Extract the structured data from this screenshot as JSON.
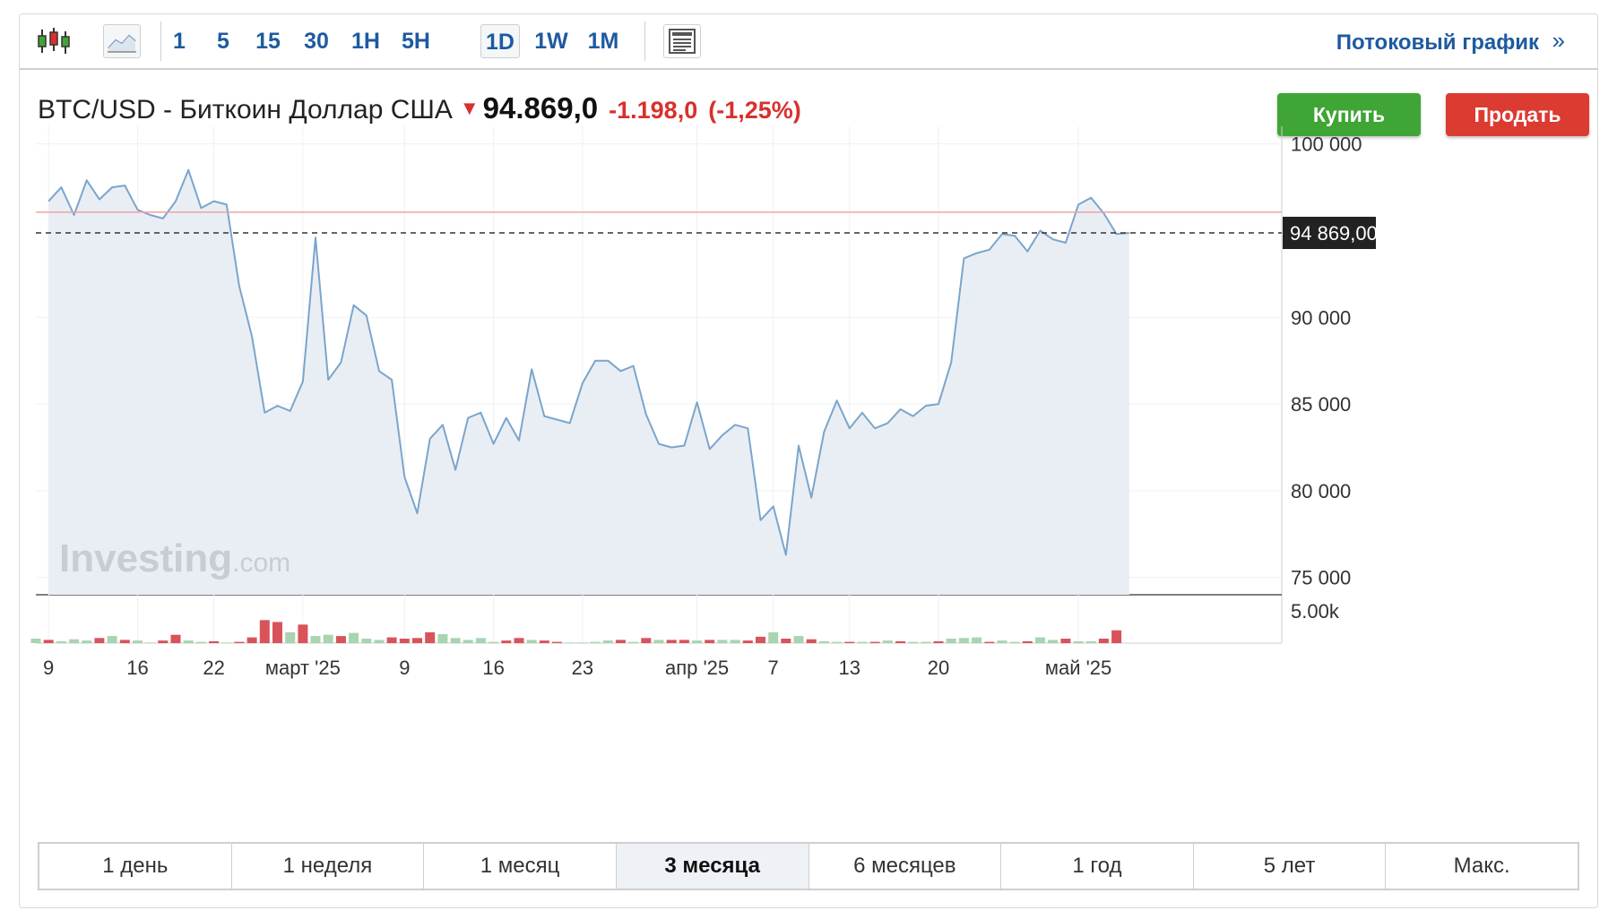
{
  "toolbar": {
    "icons": [
      "candlestick-icon",
      "line-chart-icon",
      "news-panel-icon"
    ],
    "timeframes": [
      "1",
      "5",
      "15",
      "30",
      "1H",
      "5H",
      "1D",
      "1W",
      "1M"
    ],
    "active_timeframe": "1D",
    "stream_link": "Потоковый график",
    "stream_chevron": "»"
  },
  "quote": {
    "title": "BTC/USD - Биткоин Доллар США",
    "direction": "down",
    "price": "94.869,0",
    "change": "-1.198,0",
    "change_pct": "(-1,25%)"
  },
  "buttons": {
    "buy": "Купить",
    "sell": "Продать"
  },
  "ranges": [
    "1 день",
    "1 неделя",
    "1 месяц",
    "3 месяца",
    "6 месяцев",
    "1 год",
    "5 лет",
    "Макс."
  ],
  "active_range": "3 месяца",
  "watermark": {
    "brand": "Investing",
    "suffix": ".com"
  },
  "chart_data": {
    "type": "area",
    "title": "",
    "xlabel": "",
    "ylabel": "",
    "ylim": [
      74000,
      100500
    ],
    "y_ticks": [
      100000,
      90000,
      85000,
      80000,
      75000
    ],
    "y_tick_labels": [
      "100 000",
      "90 000",
      "85 000",
      "80 000",
      "75 000"
    ],
    "x_tick_labels": [
      {
        "date": "2025-02-09",
        "label": "9"
      },
      {
        "date": "2025-02-16",
        "label": "16"
      },
      {
        "date": "2025-02-22",
        "label": "22"
      },
      {
        "date": "2025-03-01",
        "label": "март '25"
      },
      {
        "date": "2025-03-09",
        "label": "9"
      },
      {
        "date": "2025-03-16",
        "label": "16"
      },
      {
        "date": "2025-03-23",
        "label": "23"
      },
      {
        "date": "2025-04-01",
        "label": "апр '25"
      },
      {
        "date": "2025-04-07",
        "label": "7"
      },
      {
        "date": "2025-04-13",
        "label": "13"
      },
      {
        "date": "2025-04-20",
        "label": "20"
      },
      {
        "date": "2025-05-01",
        "label": "май '25"
      }
    ],
    "current_price": 94869,
    "current_price_label": "94 869,00",
    "previous_close": 96067,
    "series": [
      {
        "values": [
          {
            "x": "2025-02-09",
            "y": 96700
          },
          {
            "x": "2025-02-10",
            "y": 97500
          },
          {
            "x": "2025-02-11",
            "y": 95900
          },
          {
            "x": "2025-02-12",
            "y": 97900
          },
          {
            "x": "2025-02-13",
            "y": 96800
          },
          {
            "x": "2025-02-14",
            "y": 97500
          },
          {
            "x": "2025-02-15",
            "y": 97600
          },
          {
            "x": "2025-02-16",
            "y": 96200
          },
          {
            "x": "2025-02-17",
            "y": 95900
          },
          {
            "x": "2025-02-18",
            "y": 95700
          },
          {
            "x": "2025-02-19",
            "y": 96700
          },
          {
            "x": "2025-02-20",
            "y": 98500
          },
          {
            "x": "2025-02-21",
            "y": 96300
          },
          {
            "x": "2025-02-22",
            "y": 96700
          },
          {
            "x": "2025-02-23",
            "y": 96500
          },
          {
            "x": "2025-02-24",
            "y": 91800
          },
          {
            "x": "2025-02-25",
            "y": 88900
          },
          {
            "x": "2025-02-26",
            "y": 84500
          },
          {
            "x": "2025-02-27",
            "y": 84900
          },
          {
            "x": "2025-02-28",
            "y": 84600
          },
          {
            "x": "2025-03-01",
            "y": 86300
          },
          {
            "x": "2025-03-02",
            "y": 94600
          },
          {
            "x": "2025-03-03",
            "y": 86400
          },
          {
            "x": "2025-03-04",
            "y": 87400
          },
          {
            "x": "2025-03-05",
            "y": 90700
          },
          {
            "x": "2025-03-06",
            "y": 90100
          },
          {
            "x": "2025-03-07",
            "y": 86900
          },
          {
            "x": "2025-03-08",
            "y": 86400
          },
          {
            "x": "2025-03-09",
            "y": 80800
          },
          {
            "x": "2025-03-10",
            "y": 78700
          },
          {
            "x": "2025-03-11",
            "y": 83000
          },
          {
            "x": "2025-03-12",
            "y": 83800
          },
          {
            "x": "2025-03-13",
            "y": 81200
          },
          {
            "x": "2025-03-14",
            "y": 84200
          },
          {
            "x": "2025-03-15",
            "y": 84500
          },
          {
            "x": "2025-03-16",
            "y": 82700
          },
          {
            "x": "2025-03-17",
            "y": 84200
          },
          {
            "x": "2025-03-18",
            "y": 82900
          },
          {
            "x": "2025-03-19",
            "y": 87000
          },
          {
            "x": "2025-03-20",
            "y": 84300
          },
          {
            "x": "2025-03-21",
            "y": 84100
          },
          {
            "x": "2025-03-22",
            "y": 83900
          },
          {
            "x": "2025-03-23",
            "y": 86200
          },
          {
            "x": "2025-03-24",
            "y": 87500
          },
          {
            "x": "2025-03-25",
            "y": 87500
          },
          {
            "x": "2025-03-26",
            "y": 86900
          },
          {
            "x": "2025-03-27",
            "y": 87200
          },
          {
            "x": "2025-03-28",
            "y": 84400
          },
          {
            "x": "2025-03-29",
            "y": 82700
          },
          {
            "x": "2025-03-30",
            "y": 82500
          },
          {
            "x": "2025-03-31",
            "y": 82600
          },
          {
            "x": "2025-04-01",
            "y": 85100
          },
          {
            "x": "2025-04-02",
            "y": 82400
          },
          {
            "x": "2025-04-03",
            "y": 83200
          },
          {
            "x": "2025-04-04",
            "y": 83800
          },
          {
            "x": "2025-04-05",
            "y": 83600
          },
          {
            "x": "2025-04-06",
            "y": 78300
          },
          {
            "x": "2025-04-07",
            "y": 79100
          },
          {
            "x": "2025-04-08",
            "y": 76300
          },
          {
            "x": "2025-04-09",
            "y": 82600
          },
          {
            "x": "2025-04-10",
            "y": 79600
          },
          {
            "x": "2025-04-11",
            "y": 83400
          },
          {
            "x": "2025-04-12",
            "y": 85200
          },
          {
            "x": "2025-04-13",
            "y": 83600
          },
          {
            "x": "2025-04-14",
            "y": 84500
          },
          {
            "x": "2025-04-15",
            "y": 83600
          },
          {
            "x": "2025-04-16",
            "y": 83900
          },
          {
            "x": "2025-04-17",
            "y": 84700
          },
          {
            "x": "2025-04-18",
            "y": 84300
          },
          {
            "x": "2025-04-19",
            "y": 84900
          },
          {
            "x": "2025-04-20",
            "y": 85000
          },
          {
            "x": "2025-04-21",
            "y": 87400
          },
          {
            "x": "2025-04-22",
            "y": 93400
          },
          {
            "x": "2025-04-23",
            "y": 93700
          },
          {
            "x": "2025-04-24",
            "y": 93900
          },
          {
            "x": "2025-04-25",
            "y": 94800
          },
          {
            "x": "2025-04-26",
            "y": 94700
          },
          {
            "x": "2025-04-27",
            "y": 93800
          },
          {
            "x": "2025-04-28",
            "y": 95000
          },
          {
            "x": "2025-04-29",
            "y": 94500
          },
          {
            "x": "2025-04-30",
            "y": 94300
          },
          {
            "x": "2025-05-01",
            "y": 96500
          },
          {
            "x": "2025-05-02",
            "y": 96900
          },
          {
            "x": "2025-05-03",
            "y": 96000
          },
          {
            "x": "2025-05-04",
            "y": 94800
          },
          {
            "x": "2025-05-05",
            "y": 94869
          }
        ]
      }
    ],
    "volume": {
      "axis_label": "5.00k",
      "ymax": 5600,
      "colors": {
        "up": "#a8d4b0",
        "down": "#d9535a"
      },
      "bars": [
        {
          "x": "2025-02-08",
          "v": 700,
          "dir": "up"
        },
        {
          "x": "2025-02-09",
          "v": 500,
          "dir": "down"
        },
        {
          "x": "2025-02-10",
          "v": 300,
          "dir": "up"
        },
        {
          "x": "2025-02-11",
          "v": 600,
          "dir": "up"
        },
        {
          "x": "2025-02-12",
          "v": 400,
          "dir": "up"
        },
        {
          "x": "2025-02-13",
          "v": 800,
          "dir": "down"
        },
        {
          "x": "2025-02-14",
          "v": 1100,
          "dir": "up"
        },
        {
          "x": "2025-02-15",
          "v": 500,
          "dir": "down"
        },
        {
          "x": "2025-02-16",
          "v": 400,
          "dir": "up"
        },
        {
          "x": "2025-02-17",
          "v": 100,
          "dir": "up"
        },
        {
          "x": "2025-02-18",
          "v": 400,
          "dir": "down"
        },
        {
          "x": "2025-02-19",
          "v": 1300,
          "dir": "down"
        },
        {
          "x": "2025-02-20",
          "v": 400,
          "dir": "up"
        },
        {
          "x": "2025-02-21",
          "v": 200,
          "dir": "up"
        },
        {
          "x": "2025-02-22",
          "v": 300,
          "dir": "down"
        },
        {
          "x": "2025-02-23",
          "v": 100,
          "dir": "up"
        },
        {
          "x": "2025-02-24",
          "v": 200,
          "dir": "down"
        },
        {
          "x": "2025-02-25",
          "v": 900,
          "dir": "down"
        },
        {
          "x": "2025-02-26",
          "v": 3600,
          "dir": "down"
        },
        {
          "x": "2025-02-27",
          "v": 3300,
          "dir": "down"
        },
        {
          "x": "2025-02-28",
          "v": 1700,
          "dir": "up"
        },
        {
          "x": "2025-03-01",
          "v": 2900,
          "dir": "down"
        },
        {
          "x": "2025-03-02",
          "v": 1100,
          "dir": "up"
        },
        {
          "x": "2025-03-03",
          "v": 1300,
          "dir": "up"
        },
        {
          "x": "2025-03-04",
          "v": 1100,
          "dir": "down"
        },
        {
          "x": "2025-03-05",
          "v": 1600,
          "dir": "up"
        },
        {
          "x": "2025-03-06",
          "v": 700,
          "dir": "up"
        },
        {
          "x": "2025-03-07",
          "v": 500,
          "dir": "up"
        },
        {
          "x": "2025-03-08",
          "v": 900,
          "dir": "down"
        },
        {
          "x": "2025-03-09",
          "v": 700,
          "dir": "down"
        },
        {
          "x": "2025-03-10",
          "v": 800,
          "dir": "down"
        },
        {
          "x": "2025-03-11",
          "v": 1700,
          "dir": "down"
        },
        {
          "x": "2025-03-12",
          "v": 1400,
          "dir": "up"
        },
        {
          "x": "2025-03-13",
          "v": 800,
          "dir": "up"
        },
        {
          "x": "2025-03-14",
          "v": 500,
          "dir": "up"
        },
        {
          "x": "2025-03-15",
          "v": 800,
          "dir": "up"
        },
        {
          "x": "2025-03-16",
          "v": 200,
          "dir": "up"
        },
        {
          "x": "2025-03-17",
          "v": 400,
          "dir": "down"
        },
        {
          "x": "2025-03-18",
          "v": 800,
          "dir": "down"
        },
        {
          "x": "2025-03-19",
          "v": 500,
          "dir": "up"
        },
        {
          "x": "2025-03-20",
          "v": 400,
          "dir": "down"
        },
        {
          "x": "2025-03-21",
          "v": 200,
          "dir": "down"
        },
        {
          "x": "2025-03-22",
          "v": 100,
          "dir": "up"
        },
        {
          "x": "2025-03-23",
          "v": 100,
          "dir": "up"
        },
        {
          "x": "2025-03-24",
          "v": 200,
          "dir": "up"
        },
        {
          "x": "2025-03-25",
          "v": 400,
          "dir": "up"
        },
        {
          "x": "2025-03-26",
          "v": 500,
          "dir": "down"
        },
        {
          "x": "2025-03-27",
          "v": 200,
          "dir": "up"
        },
        {
          "x": "2025-03-28",
          "v": 800,
          "dir": "down"
        },
        {
          "x": "2025-03-29",
          "v": 500,
          "dir": "up"
        },
        {
          "x": "2025-03-30",
          "v": 500,
          "dir": "down"
        },
        {
          "x": "2025-03-31",
          "v": 500,
          "dir": "down"
        },
        {
          "x": "2025-04-01",
          "v": 400,
          "dir": "up"
        },
        {
          "x": "2025-04-02",
          "v": 500,
          "dir": "down"
        },
        {
          "x": "2025-04-03",
          "v": 500,
          "dir": "up"
        },
        {
          "x": "2025-04-04",
          "v": 500,
          "dir": "up"
        },
        {
          "x": "2025-04-05",
          "v": 400,
          "dir": "down"
        },
        {
          "x": "2025-04-06",
          "v": 1000,
          "dir": "down"
        },
        {
          "x": "2025-04-07",
          "v": 1700,
          "dir": "up"
        },
        {
          "x": "2025-04-08",
          "v": 700,
          "dir": "down"
        },
        {
          "x": "2025-04-09",
          "v": 1100,
          "dir": "up"
        },
        {
          "x": "2025-04-10",
          "v": 600,
          "dir": "down"
        },
        {
          "x": "2025-04-11",
          "v": 300,
          "dir": "up"
        },
        {
          "x": "2025-04-12",
          "v": 200,
          "dir": "up"
        },
        {
          "x": "2025-04-13",
          "v": 200,
          "dir": "down"
        },
        {
          "x": "2025-04-14",
          "v": 200,
          "dir": "up"
        },
        {
          "x": "2025-04-15",
          "v": 200,
          "dir": "down"
        },
        {
          "x": "2025-04-16",
          "v": 400,
          "dir": "up"
        },
        {
          "x": "2025-04-17",
          "v": 300,
          "dir": "down"
        },
        {
          "x": "2025-04-18",
          "v": 200,
          "dir": "up"
        },
        {
          "x": "2025-04-19",
          "v": 200,
          "dir": "up"
        },
        {
          "x": "2025-04-20",
          "v": 300,
          "dir": "down"
        },
        {
          "x": "2025-04-21",
          "v": 700,
          "dir": "up"
        },
        {
          "x": "2025-04-22",
          "v": 800,
          "dir": "up"
        },
        {
          "x": "2025-04-23",
          "v": 900,
          "dir": "up"
        },
        {
          "x": "2025-04-24",
          "v": 200,
          "dir": "down"
        },
        {
          "x": "2025-04-25",
          "v": 400,
          "dir": "up"
        },
        {
          "x": "2025-04-26",
          "v": 200,
          "dir": "up"
        },
        {
          "x": "2025-04-27",
          "v": 300,
          "dir": "down"
        },
        {
          "x": "2025-04-28",
          "v": 900,
          "dir": "up"
        },
        {
          "x": "2025-04-29",
          "v": 500,
          "dir": "up"
        },
        {
          "x": "2025-04-30",
          "v": 700,
          "dir": "down"
        },
        {
          "x": "2025-05-01",
          "v": 300,
          "dir": "up"
        },
        {
          "x": "2025-05-02",
          "v": 300,
          "dir": "up"
        },
        {
          "x": "2025-05-03",
          "v": 700,
          "dir": "down"
        },
        {
          "x": "2025-05-04",
          "v": 2000,
          "dir": "down"
        }
      ]
    },
    "colors": {
      "line": "#7ba5cb",
      "fill": "#e9eef5",
      "prev_close_line": "#f3a0a0",
      "price_label_bg": "#222222"
    }
  }
}
